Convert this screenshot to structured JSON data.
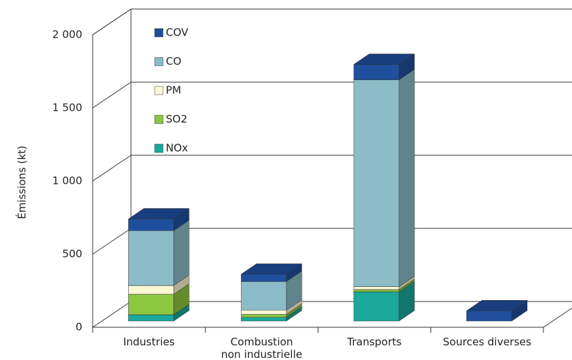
{
  "chart_data": {
    "type": "bar3d_stacked",
    "y_label": "Émissions (kt)",
    "categories": [
      "Industries",
      "Combustion\nnon industrielle",
      "Transports",
      "Sources diverses"
    ],
    "series": [
      {
        "name": "NOx",
        "color": "#1aa99a",
        "values": [
          43,
          25,
          200,
          0
        ]
      },
      {
        "name": "SO2",
        "color": "#8dc63f",
        "values": [
          140,
          20,
          15,
          0
        ]
      },
      {
        "name": "PM",
        "color": "#fbf7d4",
        "values": [
          60,
          30,
          20,
          0
        ]
      },
      {
        "name": "CO",
        "color": "#8bbcc8",
        "values": [
          375,
          195,
          1415,
          0
        ]
      },
      {
        "name": "COV",
        "color": "#1f4e9c",
        "values": [
          80,
          50,
          105,
          70
        ]
      }
    ],
    "ylim": [
      0,
      2000
    ],
    "yticks": [
      0,
      500,
      {
        "value": 1000,
        "label": "1 000"
      },
      {
        "value": 1500,
        "label": "1 500"
      },
      {
        "value": 2000,
        "label": "2 000"
      }
    ],
    "grid": true
  }
}
